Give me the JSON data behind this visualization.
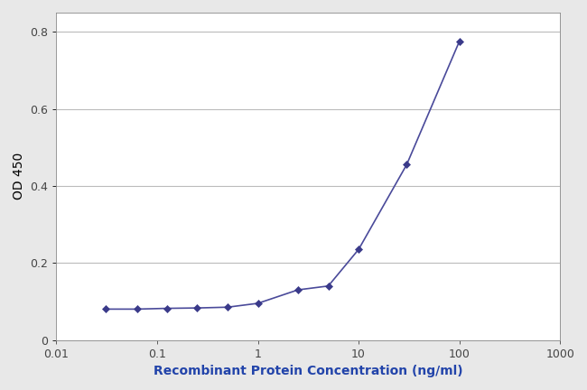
{
  "x_values": [
    0.031,
    0.063,
    0.125,
    0.25,
    0.5,
    1.0,
    2.5,
    5.0,
    10.0,
    30.0,
    100.0
  ],
  "y_values": [
    0.08,
    0.08,
    0.082,
    0.083,
    0.085,
    0.095,
    0.13,
    0.14,
    0.235,
    0.455,
    0.775
  ],
  "line_color": "#4a4a9a",
  "marker_color": "#3a3a8a",
  "marker_style": "D",
  "marker_size": 4,
  "line_width": 1.2,
  "xlabel": "Recombinant Protein Concentration (ng/ml)",
  "ylabel": "OD 450",
  "xlim": [
    0.01,
    1000
  ],
  "ylim": [
    0,
    0.85
  ],
  "yticks": [
    0,
    0.2,
    0.4,
    0.6,
    0.8
  ],
  "xtick_positions": [
    0.01,
    0.1,
    1,
    10,
    100,
    1000
  ],
  "xtick_labels": [
    "0.01",
    "0.1",
    "1",
    "10",
    "100",
    "1000"
  ],
  "grid_color": "#bbbbbb",
  "figure_background": "#e8e8e8",
  "plot_background": "#ffffff",
  "xlabel_color": "#2244aa",
  "xlabel_fontsize": 10,
  "xlabel_fontweight": "bold",
  "ylabel_fontsize": 10,
  "ylabel_color": "#000000",
  "tick_fontsize": 9,
  "tick_color": "#444444"
}
